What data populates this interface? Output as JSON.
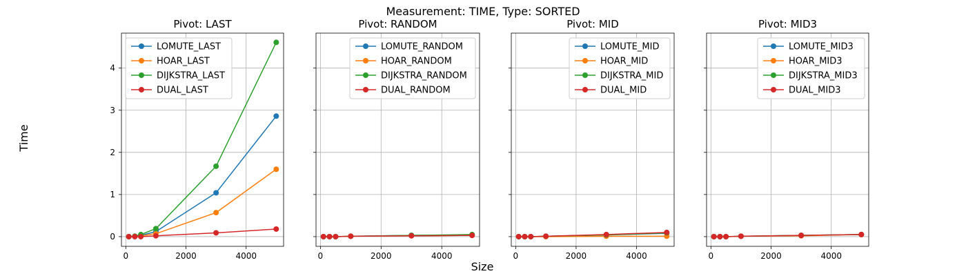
{
  "figure": {
    "suptitle": "Measurement: TIME, Type: SORTED",
    "xlabel": "Size",
    "ylabel": "Time"
  },
  "colors": {
    "LOMUTE": "#1f77b4",
    "HOAR": "#ff7f0e",
    "DIJKSTRA": "#2ca02c",
    "DUAL": "#d62728",
    "grid": "#b0b0b0"
  },
  "chart_data": [
    {
      "type": "line",
      "title": "Pivot: LAST",
      "x": [
        100,
        300,
        500,
        1000,
        3000,
        5000
      ],
      "xticks": [
        0,
        2000,
        4000
      ],
      "xlim": [
        -145,
        5245
      ],
      "yticks": [
        0,
        1,
        2,
        3,
        4
      ],
      "ylim": [
        -0.23,
        4.83
      ],
      "grid": true,
      "legend": "upper-left",
      "series": [
        {
          "name": "LOMUTE_LAST",
          "color_key": "LOMUTE",
          "values": [
            0.0,
            0.01,
            0.03,
            0.12,
            1.04,
            2.86
          ]
        },
        {
          "name": "HOAR_LAST",
          "color_key": "HOAR",
          "values": [
            0.0,
            0.01,
            0.02,
            0.07,
            0.57,
            1.6
          ]
        },
        {
          "name": "DIJKSTRA_LAST",
          "color_key": "DIJKSTRA",
          "values": [
            0.0,
            0.01,
            0.05,
            0.19,
            1.67,
            4.61
          ]
        },
        {
          "name": "DUAL_LAST",
          "color_key": "DUAL",
          "values": [
            0.0,
            0.0,
            0.0,
            0.02,
            0.09,
            0.18
          ]
        }
      ]
    },
    {
      "type": "line",
      "title": "Pivot: RANDOM",
      "x": [
        100,
        300,
        500,
        1000,
        3000,
        5000
      ],
      "xticks": [
        0,
        2000,
        4000
      ],
      "xlim": [
        -145,
        5245
      ],
      "yticks": [
        0,
        1,
        2,
        3,
        4
      ],
      "ylim": [
        -0.23,
        4.83
      ],
      "grid": true,
      "legend": "upper-right",
      "series": [
        {
          "name": "LOMUTE_RANDOM",
          "color_key": "LOMUTE",
          "values": [
            0.0,
            0.0,
            0.0,
            0.01,
            0.03,
            0.04
          ]
        },
        {
          "name": "HOAR_RANDOM",
          "color_key": "HOAR",
          "values": [
            0.0,
            0.0,
            0.0,
            0.01,
            0.02,
            0.03
          ]
        },
        {
          "name": "DIJKSTRA_RANDOM",
          "color_key": "DIJKSTRA",
          "values": [
            0.0,
            0.0,
            0.0,
            0.01,
            0.03,
            0.05
          ]
        },
        {
          "name": "DUAL_RANDOM",
          "color_key": "DUAL",
          "values": [
            0.0,
            0.0,
            0.0,
            0.01,
            0.02,
            0.03
          ]
        }
      ]
    },
    {
      "type": "line",
      "title": "Pivot: MID",
      "x": [
        100,
        300,
        500,
        1000,
        3000,
        5000
      ],
      "xticks": [
        0,
        2000,
        4000
      ],
      "xlim": [
        -145,
        5245
      ],
      "yticks": [
        0,
        1,
        2,
        3,
        4
      ],
      "ylim": [
        -0.23,
        4.83
      ],
      "grid": true,
      "legend": "upper-right",
      "series": [
        {
          "name": "LOMUTE_MID",
          "color_key": "LOMUTE",
          "values": [
            0.0,
            0.0,
            0.0,
            0.01,
            0.04,
            0.08
          ]
        },
        {
          "name": "HOAR_MID",
          "color_key": "HOAR",
          "values": [
            0.0,
            0.0,
            0.0,
            0.0,
            0.01,
            0.01
          ]
        },
        {
          "name": "DIJKSTRA_MID",
          "color_key": "DIJKSTRA",
          "values": [
            0.0,
            0.0,
            0.0,
            0.01,
            0.04,
            0.09
          ]
        },
        {
          "name": "DUAL_MID",
          "color_key": "DUAL",
          "values": [
            0.0,
            0.0,
            0.0,
            0.01,
            0.05,
            0.1
          ]
        }
      ]
    },
    {
      "type": "line",
      "title": "Pivot: MID3",
      "x": [
        100,
        300,
        500,
        1000,
        3000,
        5000
      ],
      "xticks": [
        0,
        2000,
        4000
      ],
      "xlim": [
        -145,
        5245
      ],
      "yticks": [
        0,
        1,
        2,
        3,
        4
      ],
      "ylim": [
        -0.23,
        4.83
      ],
      "grid": true,
      "legend": "upper-right",
      "series": [
        {
          "name": "LOMUTE_MID3",
          "color_key": "LOMUTE",
          "values": [
            0.0,
            0.0,
            0.0,
            0.01,
            0.03,
            0.05
          ]
        },
        {
          "name": "HOAR_MID3",
          "color_key": "HOAR",
          "values": [
            0.0,
            0.0,
            0.0,
            0.01,
            0.02,
            0.05
          ]
        },
        {
          "name": "DIJKSTRA_MID3",
          "color_key": "DIJKSTRA",
          "values": [
            0.0,
            0.0,
            0.0,
            0.01,
            0.03,
            0.05
          ]
        },
        {
          "name": "DUAL_MID3",
          "color_key": "DUAL",
          "values": [
            0.0,
            0.0,
            0.0,
            0.01,
            0.03,
            0.05
          ]
        }
      ]
    }
  ]
}
